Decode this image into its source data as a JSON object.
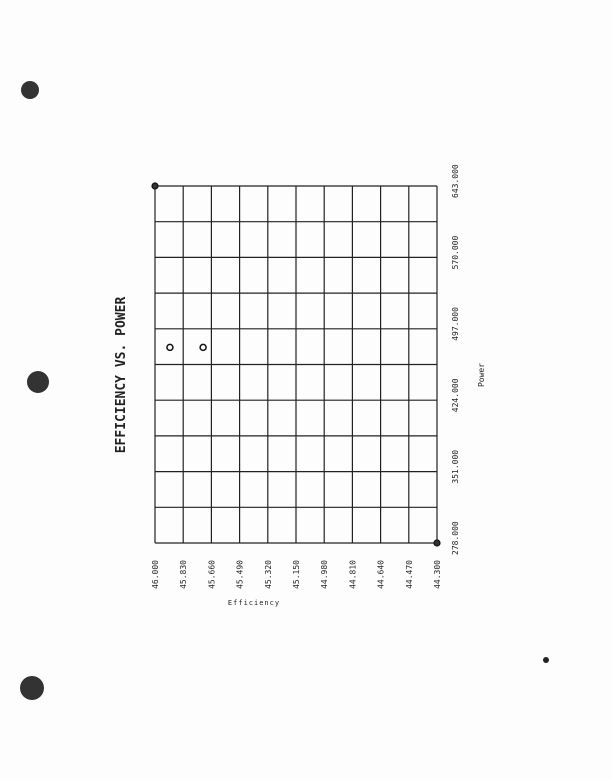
{
  "chart_data": {
    "type": "scatter",
    "title": "EFFICIENCY VS. POWER",
    "xlabel": "Power",
    "ylabel": "Efficiency",
    "orientation": "rotated 90 degrees counter-clockwise",
    "xlim": [
      278,
      643
    ],
    "ylim": [
      44.3,
      46.0
    ],
    "grid": true,
    "x_ticks": [
      "278.000",
      "351.000",
      "424.000",
      "497.000",
      "570.000",
      "643.000"
    ],
    "y_ticks": [
      "46.000",
      "45.830",
      "45.660",
      "45.490",
      "45.320",
      "45.150",
      "44.980",
      "44.810",
      "44.640",
      "44.470",
      "44.300"
    ],
    "points": [
      {
        "x": 478,
        "y": 45.91
      },
      {
        "x": 478,
        "y": 45.71
      }
    ],
    "corner_markers": [
      {
        "x": 643,
        "y": 46.0
      },
      {
        "x": 278,
        "y": 44.3
      }
    ]
  }
}
